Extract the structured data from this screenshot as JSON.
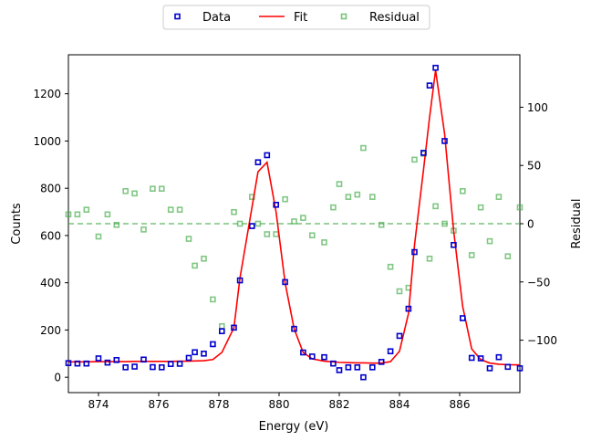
{
  "chart_data": {
    "type": "scatter",
    "title": "",
    "xlabel": "Energy (eV)",
    "ylabel": "Counts",
    "y2label": "Residual",
    "xlim": [
      873.0,
      888.0
    ],
    "ylim": [
      -65,
      1365
    ],
    "y2lim": [
      -145,
      145
    ],
    "x_ticks": [
      874,
      876,
      878,
      880,
      882,
      884,
      886
    ],
    "x_tick_labels": [
      "874",
      "876",
      "878",
      "880",
      "882",
      "884",
      "886"
    ],
    "y_ticks": [
      0,
      200,
      400,
      600,
      800,
      1000,
      1200
    ],
    "y_tick_labels": [
      "0",
      "200",
      "400",
      "600",
      "800",
      "1000",
      "1200"
    ],
    "y2_ticks": [
      -100,
      -50,
      0,
      50,
      100
    ],
    "y2_tick_labels": [
      "−100",
      "−50",
      "0",
      "50",
      "100"
    ],
    "legend": {
      "position": "top-center-outside",
      "entries": [
        "Data",
        "Fit",
        "Residual"
      ]
    },
    "grid": false,
    "zero_line": {
      "axis": "y2",
      "value": 0,
      "style": "dashed",
      "color": "#4caf50"
    },
    "x": [
      873.0,
      873.3,
      873.6,
      874.0,
      874.3,
      874.6,
      874.9,
      875.2,
      875.5,
      875.8,
      876.1,
      876.4,
      876.7,
      877.0,
      877.2,
      877.5,
      877.8,
      878.1,
      878.5,
      878.7,
      879.1,
      879.3,
      879.6,
      879.9,
      880.2,
      880.5,
      880.8,
      881.1,
      881.5,
      881.8,
      882.0,
      882.3,
      882.6,
      882.8,
      883.1,
      883.4,
      883.7,
      884.0,
      884.3,
      884.5,
      884.8,
      885.0,
      885.2,
      885.5,
      885.8,
      886.1,
      886.4,
      886.7,
      887.0,
      887.3,
      887.6,
      888.0
    ],
    "series": [
      {
        "name": "Data",
        "kind": "scatter",
        "axis": "left",
        "color": "#0000cc",
        "values": [
          60,
          58,
          58,
          80,
          62,
          73,
          42,
          45,
          75,
          43,
          42,
          56,
          57,
          82,
          106,
          100,
          140,
          195,
          210,
          410,
          640,
          910,
          940,
          730,
          403,
          205,
          105,
          88,
          85,
          58,
          30,
          42,
          42,
          0,
          42,
          65,
          110,
          175,
          290,
          530,
          950,
          1235,
          1310,
          1000,
          560,
          250,
          82,
          80,
          38,
          85,
          44,
          38
        ]
      },
      {
        "name": "Fit",
        "kind": "line",
        "axis": "left",
        "color": "#ff0000",
        "values": [
          65,
          65,
          65,
          66,
          66,
          66,
          66,
          67,
          67,
          67,
          67,
          67,
          68,
          68,
          69,
          70,
          75,
          105,
          210,
          420,
          720,
          870,
          910,
          700,
          400,
          205,
          105,
          78,
          68,
          65,
          63,
          62,
          61,
          61,
          60,
          60,
          66,
          110,
          270,
          560,
          880,
          1100,
          1300,
          1030,
          620,
          300,
          120,
          75,
          60,
          55,
          53,
          52
        ]
      },
      {
        "name": "Residual",
        "kind": "scatter",
        "axis": "right",
        "color": "#4caf50",
        "values": [
          8,
          8,
          12,
          -11,
          8,
          -1,
          28,
          26,
          -5,
          30,
          30,
          12,
          12,
          -13,
          -36,
          -30,
          -65,
          -88,
          10,
          0,
          23,
          0,
          -9,
          -9,
          21,
          2,
          5,
          -10,
          -16,
          14,
          34,
          23,
          25,
          65,
          23,
          -1,
          -37,
          -58,
          -55,
          55,
          60,
          -30,
          15,
          0,
          -6,
          28,
          -27,
          14,
          -15,
          23,
          -28,
          14
        ]
      }
    ]
  }
}
